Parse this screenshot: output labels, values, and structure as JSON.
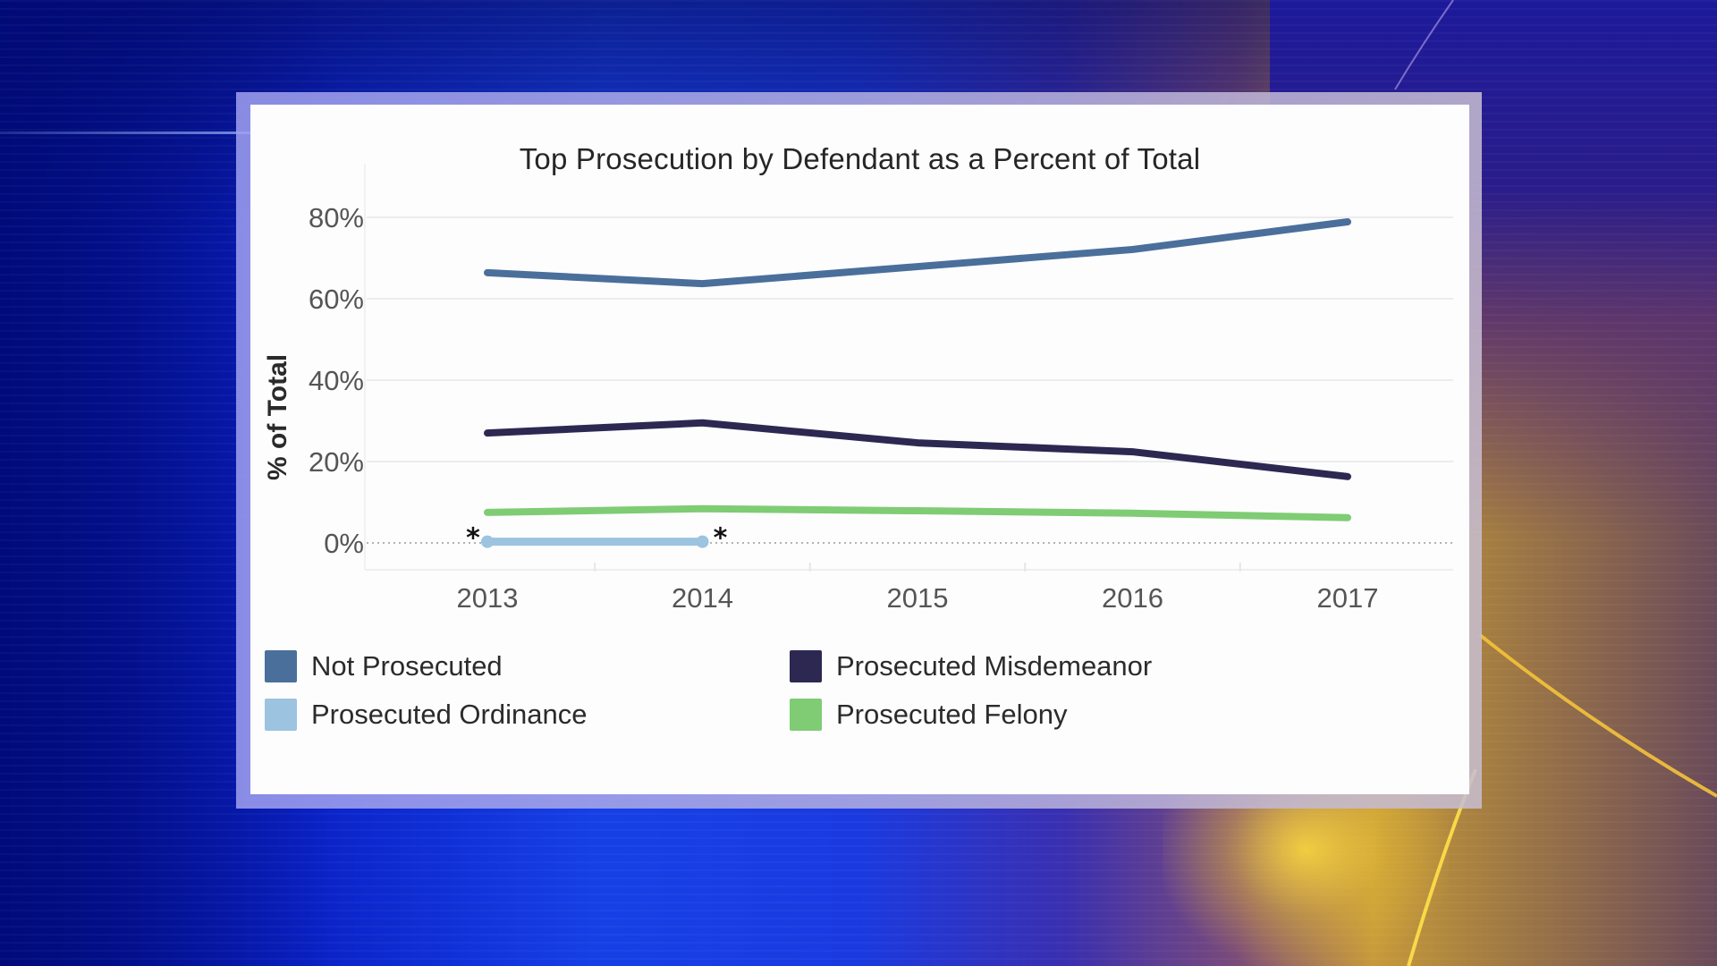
{
  "chart_data": {
    "type": "line",
    "title": "Top Prosecution by Defendant as a Percent of Total",
    "xlabel": "",
    "ylabel": "% of Total",
    "ylim": [
      0,
      80
    ],
    "yticks": [
      "0%",
      "20%",
      "40%",
      "60%",
      "80%"
    ],
    "ytick_values": [
      0,
      20,
      40,
      60,
      80
    ],
    "grid": true,
    "legend_position": "bottom",
    "categories": [
      "2013",
      "2014",
      "2015",
      "2016",
      "2017"
    ],
    "series": [
      {
        "name": "Not Prosecuted",
        "color": "#4a6f9b",
        "values": [
          66.4,
          63.7,
          67.9,
          72.1,
          78.9
        ]
      },
      {
        "name": "Prosecuted Misdemeanor",
        "color": "#2c2852",
        "values": [
          27.0,
          29.5,
          24.6,
          22.4,
          16.3
        ]
      },
      {
        "name": "Prosecuted Ordinance",
        "color": "#9cc3e0",
        "values": [
          0.3,
          0.3,
          null,
          null,
          null
        ]
      },
      {
        "name": "Prosecuted Felony",
        "color": "#7fcc74",
        "values": [
          7.5,
          8.4,
          7.9,
          7.3,
          6.2
        ]
      }
    ],
    "annotations": [
      {
        "text": "*",
        "x": "2013",
        "series": "Prosecuted Ordinance"
      },
      {
        "text": "*",
        "x": "2014",
        "series": "Prosecuted Ordinance"
      }
    ]
  }
}
